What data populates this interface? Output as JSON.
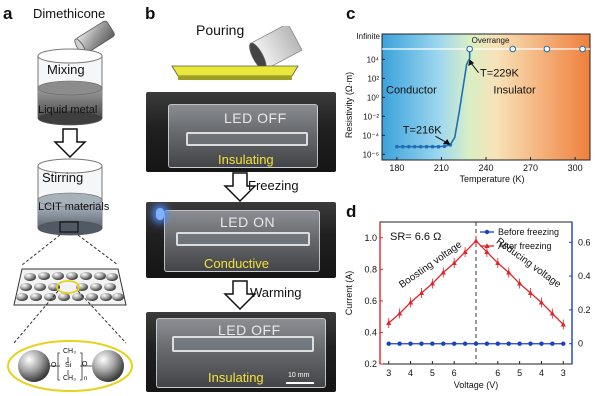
{
  "panels": {
    "a": "a",
    "b": "b",
    "c": "c",
    "d": "d"
  },
  "panel_a": {
    "dimethicone": "Dimethicone",
    "mixing": "Mixing",
    "liquid_metal": "Liquid metal",
    "stirring": "Stirring",
    "lcit_materials": "LCIT materials",
    "ch3_top": "CH₃",
    "si": "Si",
    "ch3_bottom": "CH₃",
    "o_left": "O",
    "o_right": "O",
    "n": "n"
  },
  "panel_b": {
    "pouring": "Pouring",
    "photo1_led": "LED OFF",
    "photo1_state": "Insulating",
    "freezing": "Freezing",
    "photo2_led": "LED ON",
    "photo2_state": "Conductive",
    "warming": "Warming",
    "photo3_led": "LED OFF",
    "photo3_state": "Insulating",
    "scale_bar": "10 mm"
  },
  "colors": {
    "conductor_bg": "#2e9bd8",
    "insulator_bg": "#f08a4b",
    "curve_c": "#1f6fb5",
    "red_series": "#e0262b",
    "blue_series": "#1a3fc4",
    "state_text": "#f2e23a"
  },
  "chart_data": [
    {
      "type": "line",
      "panel": "c",
      "xlabel": "Temperature (K)",
      "ylabel": "Resistivity (Ω·m)",
      "xlim": [
        170,
        310
      ],
      "x_ticks": [
        180,
        210,
        240,
        270,
        300
      ],
      "y_ticks": [
        {
          "exp": -6,
          "label": "10⁻⁶"
        },
        {
          "exp": -4,
          "label": "10⁻⁴"
        },
        {
          "exp": -2,
          "label": "10⁻²"
        },
        {
          "exp": 0,
          "label": "10⁰"
        },
        {
          "exp": 2,
          "label": "10²"
        },
        {
          "exp": 4,
          "label": "10⁴"
        }
      ],
      "y_top_label": "Infinite",
      "y_scale": "log",
      "regions": [
        {
          "label": "Conductor",
          "color": "#2e9bd8"
        },
        {
          "label": "Insulator",
          "color": "#f08a4b"
        }
      ],
      "series": [
        {
          "values_x": [
            180,
            184,
            188,
            192,
            196,
            200,
            204,
            208,
            212,
            216,
            219,
            222,
            225,
            227,
            229
          ],
          "values_y_exp": [
            -5.2,
            -5.2,
            -5.2,
            -5.2,
            -5.2,
            -5.2,
            -5.2,
            -5.2,
            -5.15,
            -5.0,
            -4.2,
            -1.5,
            1.5,
            3.5,
            4.1
          ]
        }
      ],
      "overrange": {
        "label": "Overrange",
        "x": [
          229,
          258,
          281,
          305
        ]
      },
      "annotations": [
        {
          "text": "T=216K",
          "x": 216,
          "y_exp": -5.0
        },
        {
          "text": "T=229K",
          "x": 229,
          "y_exp": 4.1
        }
      ]
    },
    {
      "type": "line",
      "panel": "d",
      "xlabel": "Voltage (V)",
      "ylabel": "Current (A)",
      "x_ticks": [
        "3",
        "4",
        "5",
        "6",
        "6",
        "5",
        "4",
        "3"
      ],
      "x_positions": [
        3,
        4,
        5,
        6,
        8,
        9,
        10,
        11
      ],
      "x_peak": 6.6,
      "x_peak_position": 7,
      "xlim": [
        2.6,
        11.4
      ],
      "ylim_left": [
        0.2,
        1.1
      ],
      "ylim_right": [
        -0.12,
        0.72
      ],
      "left_ticks": [
        "0.2",
        "0.4",
        "0.6",
        "0.8",
        "1.0"
      ],
      "left_tick_values": [
        0.2,
        0.4,
        0.6,
        0.8,
        1.0
      ],
      "right_ticks": [
        "0",
        "0.2",
        "0.4",
        "0.6"
      ],
      "right_tick_values": [
        0,
        0.2,
        0.4,
        0.6
      ],
      "label_sr": "SR= 6.6 Ω",
      "label_boost": "Boosting voltage",
      "label_reduce": "Reducing voltage",
      "legend_position": "top-right",
      "series": [
        {
          "name": "Before freezing",
          "color": "#1a3fc4",
          "axis": "right",
          "x_positions": [
            3,
            3.5,
            4,
            4.5,
            5,
            5.5,
            6,
            6.5,
            7,
            7.5,
            8,
            8.5,
            9,
            9.5,
            10,
            10.5,
            11
          ],
          "values": [
            0,
            0,
            0,
            0,
            0,
            0,
            0,
            0,
            0,
            0,
            0,
            0,
            0,
            0,
            0,
            0,
            0
          ]
        },
        {
          "name": "After  freezing",
          "color": "#e0262b",
          "axis": "left",
          "x_positions": [
            3,
            3.5,
            4,
            4.5,
            5,
            5.5,
            6,
            6.5,
            7,
            7.5,
            8,
            8.5,
            9,
            9.5,
            10,
            10.5,
            11
          ],
          "values": [
            0.46,
            0.52,
            0.59,
            0.65,
            0.71,
            0.78,
            0.84,
            0.91,
            0.98,
            0.91,
            0.84,
            0.78,
            0.71,
            0.65,
            0.59,
            0.52,
            0.45
          ]
        }
      ]
    }
  ]
}
